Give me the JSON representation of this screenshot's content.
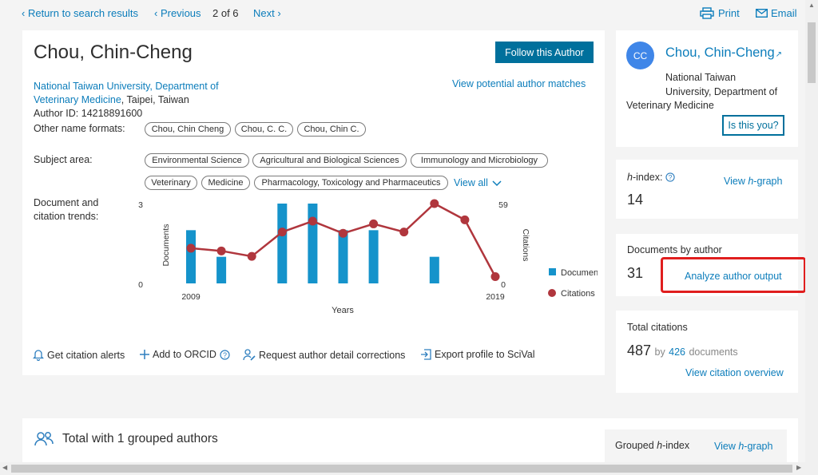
{
  "topnav": {
    "back": "Return to search results",
    "previous": "Previous",
    "position": "2 of 6",
    "next": "Next",
    "print": "Print",
    "email": "Email"
  },
  "author": {
    "name": "Chou, Chin-Cheng",
    "follow": "Follow this Author",
    "matches": "View potential author matches",
    "affiliation_link_1": "National Taiwan University, Department of",
    "affiliation_link_2": "Veterinary Medicine",
    "affiliation_rest": ", Taipei, Taiwan",
    "author_id": "Author ID: 14218891600",
    "other_formats_label": "Other name formats:",
    "other_formats": [
      "Chou, Chin Cheng",
      "Chou, C. C.",
      "Chou, Chin C."
    ],
    "subject_label": "Subject area:",
    "subjects": [
      "Environmental Science",
      "Agricultural and Biological Sciences",
      "Immunology and Microbiology",
      "Veterinary",
      "Medicine",
      "Pharmacology, Toxicology and Pharmaceutics"
    ],
    "view_all": "View all",
    "trend_label_1": "Document and",
    "trend_label_2": "citation trends:"
  },
  "chart_data": {
    "type": "bar",
    "x": [
      2009,
      2010,
      2011,
      2012,
      2013,
      2014,
      2015,
      2016,
      2017,
      2018,
      2019
    ],
    "series": [
      {
        "name": "Documents",
        "type": "bar",
        "axis": "left",
        "values": [
          2,
          1,
          0,
          3,
          3,
          2,
          2,
          0,
          1,
          0,
          0
        ]
      },
      {
        "name": "Citations",
        "type": "line",
        "axis": "right",
        "values": [
          26,
          24,
          20,
          38,
          46,
          37,
          44,
          38,
          59,
          47,
          5
        ]
      }
    ],
    "ylabel_left": "Documents",
    "ylabel_right": "Citations",
    "xlabel": "Years",
    "ylim_left": [
      0,
      3
    ],
    "ylim_right": [
      0,
      59
    ],
    "yticks_left": [
      "0",
      "3"
    ],
    "yticks_right": [
      "0",
      "59"
    ],
    "xticks": [
      "2009",
      "2019"
    ],
    "legend_position": "right",
    "colors": {
      "Documents": "#1593cb",
      "Citations": "#b0363d"
    }
  },
  "actions": {
    "alerts": "Get citation alerts",
    "orcid": "Add to ORCID",
    "corrections": "Request author detail corrections",
    "export": "Export profile to SciVal"
  },
  "profile": {
    "initials": "CC",
    "name": "Chou, Chin-Cheng",
    "aff_1": "National Taiwan",
    "aff_2": "University, Department of",
    "aff_3": "Veterinary Medicine",
    "is_you": "Is this you?"
  },
  "hindex": {
    "label_h": "h",
    "label_rest": "-index:",
    "value": "14",
    "link_pre": "View ",
    "link_h": "h",
    "link_post": "-graph"
  },
  "documents": {
    "label": "Documents by author",
    "value": "31",
    "analyze": "Analyze author output"
  },
  "citations": {
    "label": "Total citations",
    "value": "487",
    "by": "by",
    "docs_num": "426",
    "docs": "documents",
    "overview": "View citation overview"
  },
  "grouped": {
    "title": "Total with 1 grouped authors",
    "hindex_pre": "Grouped ",
    "hindex_h": "h",
    "hindex_post": "-index",
    "graph_pre": "View ",
    "graph_h": "h",
    "graph_post": "-graph"
  },
  "colors": {
    "accent": "#0c7dbb",
    "button": "#00709c",
    "highlight": "#e01e1e",
    "avatar": "#3f86e8"
  }
}
